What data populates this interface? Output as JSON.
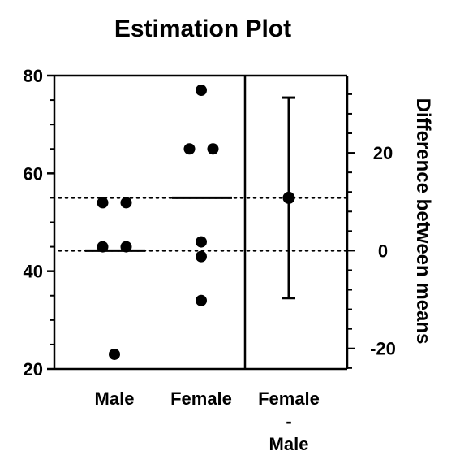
{
  "chart_data": {
    "type": "scatter",
    "title": "Estimation Plot",
    "left_axis": {
      "ylim": [
        20,
        80
      ],
      "ticks": [
        "20",
        "40",
        "60",
        "80"
      ]
    },
    "right_axis": {
      "label": "Difference between means",
      "ticks": [
        "-20",
        "0",
        "20"
      ]
    },
    "categories": [
      "Male",
      "Female"
    ],
    "groups": [
      {
        "category": "Male",
        "values": [
          54,
          54,
          45,
          45,
          23
        ],
        "mean": 44.2
      },
      {
        "category": "Female",
        "values": [
          77,
          65,
          65,
          46,
          43,
          34
        ],
        "mean": 55
      }
    ],
    "difference": {
      "label_lines": [
        "Female",
        "-",
        "Male"
      ],
      "mean": 10.8,
      "ci": [
        -9.7,
        31.3
      ]
    },
    "reference_lines": [
      44.2,
      55
    ],
    "reference_style": "dotted",
    "grid": false
  },
  "colors": {
    "ink": "#000000",
    "background": "#ffffff"
  }
}
